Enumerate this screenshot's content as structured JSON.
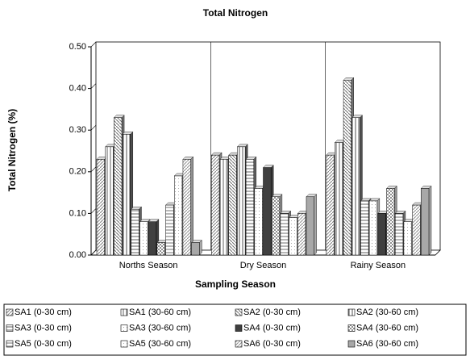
{
  "chart_data": {
    "type": "bar",
    "title": "Total Nitrogen",
    "x_label": "Sampling Season",
    "y_label": "Total Nitrogen (%)",
    "categories": [
      "Norths Season",
      "Dry Season",
      "Rainy Season"
    ],
    "ylim": [
      0,
      0.5
    ],
    "yticks": [
      {
        "value": 0,
        "label": "0.00"
      },
      {
        "value": 0.1,
        "label": "0.10"
      },
      {
        "value": 0.2,
        "label": "0.20"
      },
      {
        "value": 0.3,
        "label": "0.30"
      },
      {
        "value": 0.4,
        "label": "0.40"
      },
      {
        "value": 0.5,
        "label": "0.50"
      }
    ],
    "grid": true,
    "series": [
      {
        "name": "SA1 (0-30 cm)",
        "color": "#808080",
        "values": [
          0.23,
          0.24,
          0.24
        ]
      },
      {
        "name": "SA1 (30-60 cm)",
        "color": "#606060",
        "values": [
          0.26,
          0.23,
          0.27
        ]
      },
      {
        "name": "SA2 (0-30 cm)",
        "color": "#707070",
        "values": [
          0.33,
          0.24,
          0.42
        ]
      },
      {
        "name": "SA2 (30-60 cm)",
        "color": "#505050",
        "values": [
          0.29,
          0.26,
          0.33
        ]
      },
      {
        "name": "SA3 (0-30 cm)",
        "color": "#606060",
        "values": [
          0.11,
          0.23,
          0.13
        ]
      },
      {
        "name": "SA3 (30-60 cm)",
        "color": "#a0a0a0",
        "values": [
          0.08,
          0.16,
          0.13
        ]
      },
      {
        "name": "SA4 (0-30 cm)",
        "color": "#404040",
        "values": [
          0.08,
          0.21,
          0.1
        ]
      },
      {
        "name": "SA4 (30-60 cm)",
        "color": "#909090",
        "values": [
          0.03,
          0.14,
          0.16
        ]
      },
      {
        "name": "SA5 (0-30 cm)",
        "color": "#707070",
        "values": [
          0.12,
          0.1,
          0.1
        ]
      },
      {
        "name": "SA5 (30-60 cm)",
        "color": "#b0b0b0",
        "values": [
          0.19,
          0.09,
          0.08
        ]
      },
      {
        "name": "SA6 (0-30 cm)",
        "color": "#909090",
        "values": [
          0.23,
          0.1,
          0.12
        ]
      },
      {
        "name": "SA6 (30-60 cm)",
        "color": "#a8a8a8",
        "values": [
          0.03,
          0.14,
          0.16
        ]
      }
    ]
  }
}
